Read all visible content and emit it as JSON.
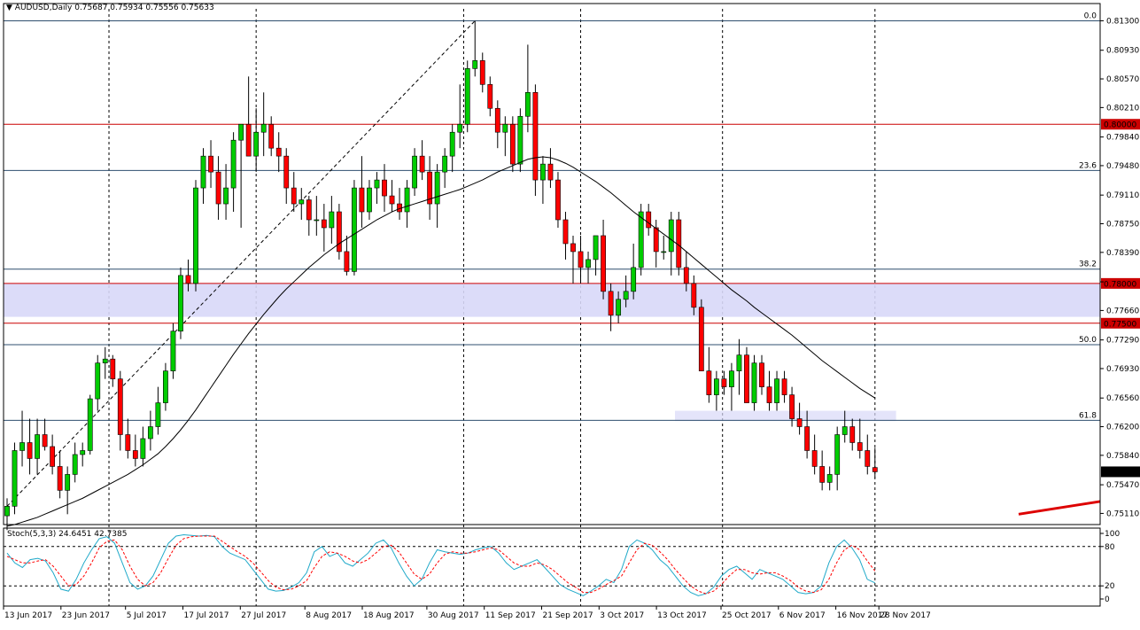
{
  "header": {
    "symbol": "AUDUSD,Daily",
    "ohlc": "0.75687 0.75934 0.75556 0.75633"
  },
  "stoch_header": "Stoch(5,3,3) 24.6451 42.7385",
  "colors": {
    "bull": "#00cc00",
    "bear": "#ff0000",
    "ma": "#000000",
    "level": "#cc0000",
    "fib": "#2f4f6f",
    "zone": "#d8d8f8",
    "stoch_main": "#1fa9c9",
    "stoch_signal": "#ff0000",
    "trend": "#dd0000"
  },
  "chart_data": [
    {
      "type": "candlestick",
      "symbol": "AUDUSD",
      "timeframe": "Daily",
      "title": "AUDUSD,Daily",
      "last_ohlc": {
        "open": 0.75687,
        "high": 0.75934,
        "low": 0.75556,
        "close": 0.75633
      },
      "current_price": 0.75633,
      "ylim": [
        0.7497,
        0.8145
      ],
      "price_ticks": [
        "0.81300",
        "0.80930",
        "0.80570",
        "0.80210",
        "0.79840",
        "0.79480",
        "0.79110",
        "0.78750",
        "0.78390",
        "0.78020",
        "0.77660",
        "0.77290",
        "0.76930",
        "0.76560",
        "0.76200",
        "0.75840",
        "0.75470",
        "0.75110"
      ],
      "date_labels": [
        "13 Jun 2017",
        "23 Jun 2017",
        "5 Jul 2017",
        "17 Jul 2017",
        "27 Jul 2017",
        "8 Aug 2017",
        "18 Aug 2017",
        "30 Aug 2017",
        "11 Sep 2017",
        "21 Sep 2017",
        "3 Oct 2017",
        "13 Oct 2017",
        "25 Oct 2017",
        "6 Nov 2017",
        "16 Nov 2017",
        "28 Nov 2017"
      ],
      "horizontal_levels": [
        {
          "price": 0.8,
          "label": "0.80000"
        },
        {
          "price": 0.78,
          "label": "0.78000"
        },
        {
          "price": 0.775,
          "label": "0.77500"
        }
      ],
      "fibonacci": [
        {
          "level": "0.0",
          "price": 0.813
        },
        {
          "level": "23.6",
          "price": 0.7942
        },
        {
          "level": "38.2",
          "price": 0.7818
        },
        {
          "level": "50.0",
          "price": 0.7723
        },
        {
          "level": "61.8",
          "price": 0.7628
        }
      ],
      "zones": [
        {
          "from": 0.7758,
          "to": 0.78
        },
        {
          "from": 0.7627,
          "to": 0.764
        }
      ],
      "candles": [
        [
          0.7508,
          0.753,
          0.749,
          0.752
        ],
        [
          0.752,
          0.76,
          0.751,
          0.759
        ],
        [
          0.759,
          0.764,
          0.757,
          0.76
        ],
        [
          0.76,
          0.763,
          0.756,
          0.758
        ],
        [
          0.758,
          0.763,
          0.756,
          0.761
        ],
        [
          0.761,
          0.763,
          0.759,
          0.7595
        ],
        [
          0.7595,
          0.761,
          0.756,
          0.757
        ],
        [
          0.757,
          0.759,
          0.753,
          0.754
        ],
        [
          0.754,
          0.757,
          0.751,
          0.756
        ],
        [
          0.756,
          0.76,
          0.755,
          0.7585
        ],
        [
          0.7585,
          0.76,
          0.757,
          0.759
        ],
        [
          0.759,
          0.766,
          0.7585,
          0.7655
        ],
        [
          0.7655,
          0.771,
          0.764,
          0.77
        ],
        [
          0.77,
          0.772,
          0.768,
          0.7705
        ],
        [
          0.7705,
          0.771,
          0.767,
          0.768
        ],
        [
          0.768,
          0.769,
          0.759,
          0.761
        ],
        [
          0.761,
          0.763,
          0.758,
          0.759
        ],
        [
          0.759,
          0.761,
          0.757,
          0.758
        ],
        [
          0.758,
          0.762,
          0.757,
          0.7605
        ],
        [
          0.7605,
          0.764,
          0.759,
          0.762
        ],
        [
          0.762,
          0.767,
          0.761,
          0.765
        ],
        [
          0.765,
          0.77,
          0.764,
          0.769
        ],
        [
          0.769,
          0.775,
          0.768,
          0.774
        ],
        [
          0.774,
          0.782,
          0.773,
          0.781
        ],
        [
          0.781,
          0.783,
          0.779,
          0.78
        ],
        [
          0.78,
          0.793,
          0.779,
          0.792
        ],
        [
          0.792,
          0.797,
          0.79,
          0.796
        ],
        [
          0.796,
          0.798,
          0.792,
          0.794
        ],
        [
          0.794,
          0.796,
          0.788,
          0.79
        ],
        [
          0.79,
          0.795,
          0.788,
          0.792
        ],
        [
          0.792,
          0.799,
          0.789,
          0.798
        ],
        [
          0.798,
          0.8,
          0.787,
          0.8
        ],
        [
          0.8,
          0.806,
          0.796,
          0.796
        ],
        [
          0.796,
          0.802,
          0.794,
          0.799
        ],
        [
          0.799,
          0.804,
          0.796,
          0.8
        ],
        [
          0.8,
          0.801,
          0.796,
          0.797
        ],
        [
          0.797,
          0.799,
          0.794,
          0.796
        ],
        [
          0.796,
          0.797,
          0.79,
          0.792
        ],
        [
          0.792,
          0.794,
          0.789,
          0.79
        ],
        [
          0.79,
          0.792,
          0.788,
          0.7905
        ],
        [
          0.7905,
          0.791,
          0.786,
          0.788
        ],
        [
          0.788,
          0.791,
          0.786,
          0.788
        ],
        [
          0.788,
          0.79,
          0.784,
          0.787
        ],
        [
          0.787,
          0.791,
          0.785,
          0.789
        ],
        [
          0.789,
          0.79,
          0.783,
          0.784
        ],
        [
          0.784,
          0.786,
          0.781,
          0.7815
        ],
        [
          0.7815,
          0.793,
          0.781,
          0.792
        ],
        [
          0.792,
          0.796,
          0.787,
          0.789
        ],
        [
          0.789,
          0.793,
          0.788,
          0.792
        ],
        [
          0.792,
          0.794,
          0.79,
          0.793
        ],
        [
          0.793,
          0.795,
          0.789,
          0.791
        ],
        [
          0.791,
          0.793,
          0.789,
          0.79
        ],
        [
          0.79,
          0.792,
          0.788,
          0.789
        ],
        [
          0.789,
          0.793,
          0.787,
          0.792
        ],
        [
          0.792,
          0.797,
          0.791,
          0.796
        ],
        [
          0.796,
          0.798,
          0.793,
          0.794
        ],
        [
          0.794,
          0.796,
          0.788,
          0.79
        ],
        [
          0.79,
          0.795,
          0.787,
          0.794
        ],
        [
          0.794,
          0.797,
          0.792,
          0.796
        ],
        [
          0.796,
          0.8,
          0.794,
          0.799
        ],
        [
          0.799,
          0.805,
          0.797,
          0.8
        ],
        [
          0.8,
          0.808,
          0.799,
          0.807
        ],
        [
          0.807,
          0.813,
          0.806,
          0.808
        ],
        [
          0.808,
          0.809,
          0.804,
          0.805
        ],
        [
          0.805,
          0.806,
          0.801,
          0.802
        ],
        [
          0.802,
          0.803,
          0.797,
          0.799
        ],
        [
          0.799,
          0.801,
          0.796,
          0.8
        ],
        [
          0.8,
          0.801,
          0.794,
          0.795
        ],
        [
          0.795,
          0.802,
          0.794,
          0.801
        ],
        [
          0.801,
          0.81,
          0.799,
          0.804
        ],
        [
          0.804,
          0.805,
          0.791,
          0.793
        ],
        [
          0.793,
          0.796,
          0.79,
          0.795
        ],
        [
          0.795,
          0.797,
          0.792,
          0.793
        ],
        [
          0.793,
          0.794,
          0.787,
          0.788
        ],
        [
          0.788,
          0.789,
          0.783,
          0.785
        ],
        [
          0.785,
          0.786,
          0.78,
          0.784
        ],
        [
          0.784,
          0.786,
          0.78,
          0.782
        ],
        [
          0.782,
          0.784,
          0.78,
          0.783
        ],
        [
          0.783,
          0.786,
          0.781,
          0.786
        ],
        [
          0.786,
          0.788,
          0.778,
          0.779
        ],
        [
          0.779,
          0.78,
          0.774,
          0.776
        ],
        [
          0.776,
          0.779,
          0.775,
          0.778
        ],
        [
          0.778,
          0.781,
          0.777,
          0.779
        ],
        [
          0.779,
          0.785,
          0.778,
          0.782
        ],
        [
          0.782,
          0.79,
          0.781,
          0.789
        ],
        [
          0.789,
          0.79,
          0.786,
          0.787
        ],
        [
          0.787,
          0.788,
          0.782,
          0.784
        ],
        [
          0.784,
          0.786,
          0.783,
          0.784
        ],
        [
          0.784,
          0.789,
          0.781,
          0.788
        ],
        [
          0.788,
          0.789,
          0.781,
          0.782
        ],
        [
          0.782,
          0.784,
          0.779,
          0.78
        ],
        [
          0.78,
          0.781,
          0.776,
          0.777
        ],
        [
          0.777,
          0.778,
          0.769,
          0.769
        ],
        [
          0.769,
          0.772,
          0.765,
          0.766
        ],
        [
          0.766,
          0.769,
          0.764,
          0.768
        ],
        [
          0.768,
          0.769,
          0.766,
          0.767
        ],
        [
          0.767,
          0.77,
          0.764,
          0.769
        ],
        [
          0.769,
          0.773,
          0.766,
          0.771
        ],
        [
          0.771,
          0.772,
          0.765,
          0.765
        ],
        [
          0.765,
          0.771,
          0.764,
          0.77
        ],
        [
          0.77,
          0.771,
          0.766,
          0.767
        ],
        [
          0.767,
          0.769,
          0.764,
          0.765
        ],
        [
          0.765,
          0.769,
          0.764,
          0.768
        ],
        [
          0.768,
          0.769,
          0.765,
          0.766
        ],
        [
          0.766,
          0.767,
          0.762,
          0.763
        ],
        [
          0.763,
          0.765,
          0.761,
          0.762
        ],
        [
          0.762,
          0.764,
          0.758,
          0.759
        ],
        [
          0.759,
          0.761,
          0.756,
          0.757
        ],
        [
          0.757,
          0.759,
          0.754,
          0.755
        ],
        [
          0.755,
          0.757,
          0.754,
          0.756
        ],
        [
          0.756,
          0.762,
          0.754,
          0.761
        ],
        [
          0.761,
          0.764,
          0.76,
          0.762
        ],
        [
          0.762,
          0.763,
          0.759,
          0.76
        ],
        [
          0.76,
          0.763,
          0.758,
          0.759
        ],
        [
          0.759,
          0.761,
          0.756,
          0.757
        ],
        [
          0.75687,
          0.75934,
          0.75556,
          0.75633
        ]
      ],
      "sma": [
        0.7495,
        0.7497,
        0.75,
        0.7503,
        0.7506,
        0.751,
        0.7514,
        0.7518,
        0.7522,
        0.7526,
        0.753,
        0.7535,
        0.754,
        0.7545,
        0.755,
        0.7555,
        0.756,
        0.7566,
        0.7572,
        0.7579,
        0.7586,
        0.7595,
        0.7605,
        0.7616,
        0.7628,
        0.7641,
        0.7655,
        0.7669,
        0.7683,
        0.7697,
        0.7711,
        0.7724,
        0.7737,
        0.7749,
        0.7761,
        0.7772,
        0.7783,
        0.7793,
        0.7802,
        0.7811,
        0.782,
        0.7828,
        0.7836,
        0.7843,
        0.785,
        0.7856,
        0.7862,
        0.7868,
        0.7874,
        0.788,
        0.7885,
        0.789,
        0.7894,
        0.7897,
        0.79,
        0.7903,
        0.7906,
        0.7909,
        0.7912,
        0.7915,
        0.7918,
        0.7922,
        0.7926,
        0.793,
        0.7935,
        0.794,
        0.7944,
        0.7948,
        0.7952,
        0.7956,
        0.7958,
        0.7959,
        0.7958,
        0.7955,
        0.7951,
        0.7946,
        0.794,
        0.7934,
        0.7928,
        0.7921,
        0.7914,
        0.7906,
        0.7898,
        0.789,
        0.7883,
        0.7876,
        0.7869,
        0.7862,
        0.7855,
        0.7848,
        0.784,
        0.7832,
        0.7824,
        0.7816,
        0.7808,
        0.78,
        0.7792,
        0.7785,
        0.7778,
        0.777,
        0.7763,
        0.7756,
        0.7749,
        0.7742,
        0.7735,
        0.7727,
        0.7719,
        0.7711,
        0.7703,
        0.7696,
        0.7689,
        0.7682,
        0.7675,
        0.7668,
        0.7662,
        0.7656
      ],
      "dashed_trendline": {
        "from": [
          0,
          0.752
        ],
        "to": [
          62,
          0.813
        ]
      },
      "red_trendline": {
        "from_price": 0.751,
        "to_price": 0.7526
      }
    },
    {
      "type": "line",
      "title": "Stoch(5,3,3) 24.6451 42.7385",
      "ylim": [
        0,
        100
      ],
      "yticks": [
        "100",
        "80",
        "20",
        "0"
      ],
      "levels": [
        80,
        20
      ],
      "series": [
        {
          "name": "main",
          "values": [
            70,
            55,
            48,
            60,
            62,
            58,
            40,
            15,
            12,
            30,
            55,
            75,
            92,
            95,
            85,
            55,
            25,
            15,
            20,
            35,
            60,
            85,
            96,
            98,
            97,
            96,
            97,
            95,
            80,
            70,
            65,
            60,
            45,
            30,
            15,
            12,
            13,
            18,
            25,
            40,
            72,
            80,
            65,
            70,
            55,
            50,
            60,
            70,
            85,
            90,
            78,
            55,
            35,
            20,
            30,
            55,
            75,
            72,
            70,
            68,
            70,
            75,
            78,
            80,
            70,
            55,
            45,
            50,
            55,
            60,
            48,
            35,
            22,
            15,
            10,
            5,
            12,
            20,
            30,
            25,
            45,
            80,
            90,
            85,
            75,
            60,
            50,
            35,
            20,
            10,
            5,
            8,
            18,
            35,
            45,
            50,
            40,
            30,
            45,
            40,
            35,
            30,
            20,
            10,
            8,
            10,
            20,
            55,
            80,
            90,
            78,
            60,
            30,
            24.6
          ]
        },
        {
          "name": "signal",
          "values": [
            65,
            60,
            55,
            55,
            58,
            60,
            50,
            35,
            20,
            22,
            35,
            55,
            78,
            88,
            90,
            75,
            50,
            30,
            20,
            25,
            40,
            62,
            82,
            92,
            95,
            96,
            96,
            96,
            88,
            80,
            72,
            65,
            55,
            42,
            28,
            18,
            14,
            15,
            20,
            28,
            48,
            65,
            72,
            70,
            65,
            58,
            55,
            60,
            70,
            80,
            82,
            72,
            55,
            38,
            30,
            38,
            55,
            68,
            72,
            70,
            70,
            72,
            75,
            78,
            75,
            65,
            55,
            50,
            50,
            55,
            52,
            45,
            35,
            25,
            18,
            10,
            10,
            15,
            22,
            28,
            35,
            55,
            75,
            85,
            82,
            72,
            60,
            45,
            32,
            20,
            12,
            8,
            12,
            22,
            35,
            45,
            45,
            40,
            38,
            40,
            40,
            35,
            28,
            18,
            12,
            10,
            14,
            30,
            55,
            75,
            82,
            75,
            58,
            42.7
          ]
        }
      ]
    }
  ]
}
